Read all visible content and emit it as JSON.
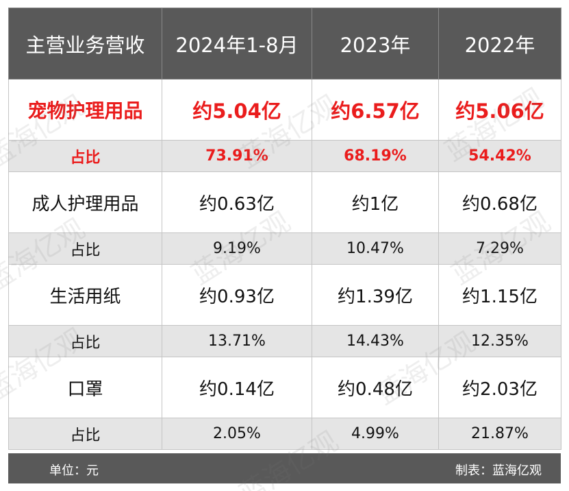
{
  "chart_data": {
    "type": "table",
    "columns": [
      "主营业务营收",
      "2024年1-8月",
      "2023年",
      "2022年"
    ],
    "rows": [
      {
        "name": "宠物护理用品",
        "values": [
          "约5.04亿",
          "约6.57亿",
          "约5.06亿"
        ],
        "highlight": true
      },
      {
        "name": "占比",
        "values": [
          "73.91%",
          "68.19%",
          "54.42%"
        ],
        "highlight": true,
        "share": true
      },
      {
        "name": "成人护理用品",
        "values": [
          "约0.63亿",
          "约1亿",
          "约0.68亿"
        ]
      },
      {
        "name": "占比",
        "values": [
          "9.19%",
          "10.47%",
          "7.29%"
        ],
        "share": true
      },
      {
        "name": "生活用纸",
        "values": [
          "约0.93亿",
          "约1.39亿",
          "约1.15亿"
        ]
      },
      {
        "name": "占比",
        "values": [
          "13.71%",
          "14.43%",
          "12.35%"
        ],
        "share": true
      },
      {
        "name": "口罩",
        "values": [
          "约0.14亿",
          "约0.48亿",
          "约2.03亿"
        ]
      },
      {
        "name": "占比",
        "values": [
          "2.05%",
          "4.99%",
          "21.87%"
        ],
        "share": true
      }
    ]
  },
  "footer": {
    "unit": "单位：元",
    "credit": "制表：蓝海亿观"
  },
  "watermark": "蓝海亿观",
  "colors": {
    "header_bg": "#595959",
    "share_row_bg": "#e5e5e5",
    "highlight_text": "#ea1c1c"
  }
}
